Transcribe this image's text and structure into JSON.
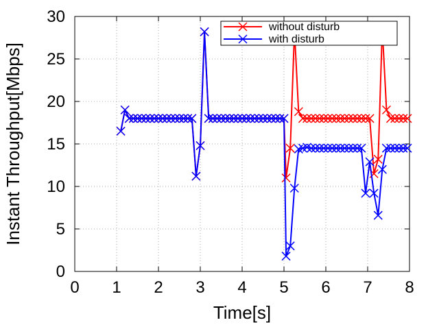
{
  "chart_data": {
    "type": "line",
    "xlabel": "Time[s]",
    "ylabel": "Instant Throughput[Mbps]",
    "xlim": [
      0,
      8
    ],
    "ylim": [
      0,
      30
    ],
    "xticks": [
      "0",
      "1",
      "2",
      "3",
      "4",
      "5",
      "6",
      "7",
      "8"
    ],
    "yticks": [
      "0",
      "5",
      "10",
      "15",
      "20",
      "25",
      "30"
    ],
    "grid": true,
    "legend_position": "top-right",
    "series": [
      {
        "name": "without disturb",
        "color": "#ff0000",
        "marker": "x",
        "x": [
          1.1,
          1.2,
          1.3,
          1.4,
          1.5,
          1.6,
          1.7,
          1.8,
          1.9,
          2.0,
          2.1,
          2.2,
          2.3,
          2.4,
          2.5,
          2.6,
          2.7,
          2.8,
          2.9,
          3.0,
          3.1,
          3.2,
          3.3,
          3.4,
          3.5,
          3.6,
          3.7,
          3.8,
          3.9,
          4.0,
          4.1,
          4.2,
          4.3,
          4.4,
          4.5,
          4.6,
          4.7,
          4.8,
          4.9,
          5.0,
          5.05,
          5.15,
          5.25,
          5.35,
          5.45,
          5.55,
          5.65,
          5.75,
          5.85,
          5.95,
          6.05,
          6.15,
          6.25,
          6.35,
          6.45,
          6.55,
          6.65,
          6.75,
          6.85,
          6.95,
          7.05,
          7.15,
          7.25,
          7.35,
          7.45,
          7.55,
          7.65,
          7.75,
          7.85,
          7.95
        ],
        "y": [
          16.5,
          19.0,
          18.0,
          18.0,
          18.0,
          18.0,
          18.0,
          18.0,
          18.0,
          18.0,
          18.0,
          18.0,
          18.0,
          18.0,
          18.0,
          18.0,
          18.0,
          18.0,
          11.2,
          14.8,
          28.2,
          18.0,
          18.0,
          18.0,
          18.0,
          18.0,
          18.0,
          18.0,
          18.0,
          18.0,
          18.0,
          18.0,
          18.0,
          18.0,
          18.0,
          18.0,
          18.0,
          18.0,
          18.0,
          18.0,
          11.0,
          14.5,
          28.3,
          18.8,
          18.0,
          18.0,
          18.0,
          18.0,
          18.0,
          18.0,
          18.0,
          18.0,
          18.0,
          18.0,
          18.0,
          18.0,
          18.0,
          18.0,
          18.0,
          18.0,
          18.0,
          11.5,
          13.2,
          28.6,
          19.0,
          18.0,
          18.0,
          18.0,
          18.0,
          18.0
        ]
      },
      {
        "name": "with disturb",
        "color": "#0000ff",
        "marker": "x",
        "x": [
          1.1,
          1.2,
          1.3,
          1.4,
          1.5,
          1.6,
          1.7,
          1.8,
          1.9,
          2.0,
          2.1,
          2.2,
          2.3,
          2.4,
          2.5,
          2.6,
          2.7,
          2.8,
          2.9,
          3.0,
          3.1,
          3.2,
          3.3,
          3.4,
          3.5,
          3.6,
          3.7,
          3.8,
          3.9,
          4.0,
          4.1,
          4.2,
          4.3,
          4.4,
          4.5,
          4.6,
          4.7,
          4.8,
          4.9,
          5.0,
          5.05,
          5.15,
          5.25,
          5.35,
          5.45,
          5.55,
          5.65,
          5.75,
          5.85,
          5.95,
          6.05,
          6.15,
          6.25,
          6.35,
          6.45,
          6.55,
          6.65,
          6.75,
          6.85,
          6.95,
          7.05,
          7.15,
          7.25,
          7.35,
          7.45,
          7.55,
          7.65,
          7.75,
          7.85,
          7.95
        ],
        "y": [
          16.5,
          19.0,
          18.0,
          18.0,
          18.0,
          18.0,
          18.0,
          18.0,
          18.0,
          18.0,
          18.0,
          18.0,
          18.0,
          18.0,
          18.0,
          18.0,
          18.0,
          18.0,
          11.2,
          14.8,
          28.2,
          18.0,
          18.0,
          18.0,
          18.0,
          18.0,
          18.0,
          18.0,
          18.0,
          18.0,
          18.0,
          18.0,
          18.0,
          18.0,
          18.0,
          18.0,
          18.0,
          18.0,
          18.0,
          18.0,
          1.8,
          3.0,
          9.8,
          14.4,
          14.5,
          14.6,
          14.5,
          14.5,
          14.5,
          14.5,
          14.5,
          14.5,
          14.5,
          14.5,
          14.5,
          14.5,
          14.5,
          14.5,
          14.5,
          9.2,
          12.9,
          9.2,
          6.6,
          12.0,
          14.5,
          14.5,
          14.5,
          14.5,
          14.5,
          14.5
        ]
      }
    ]
  }
}
